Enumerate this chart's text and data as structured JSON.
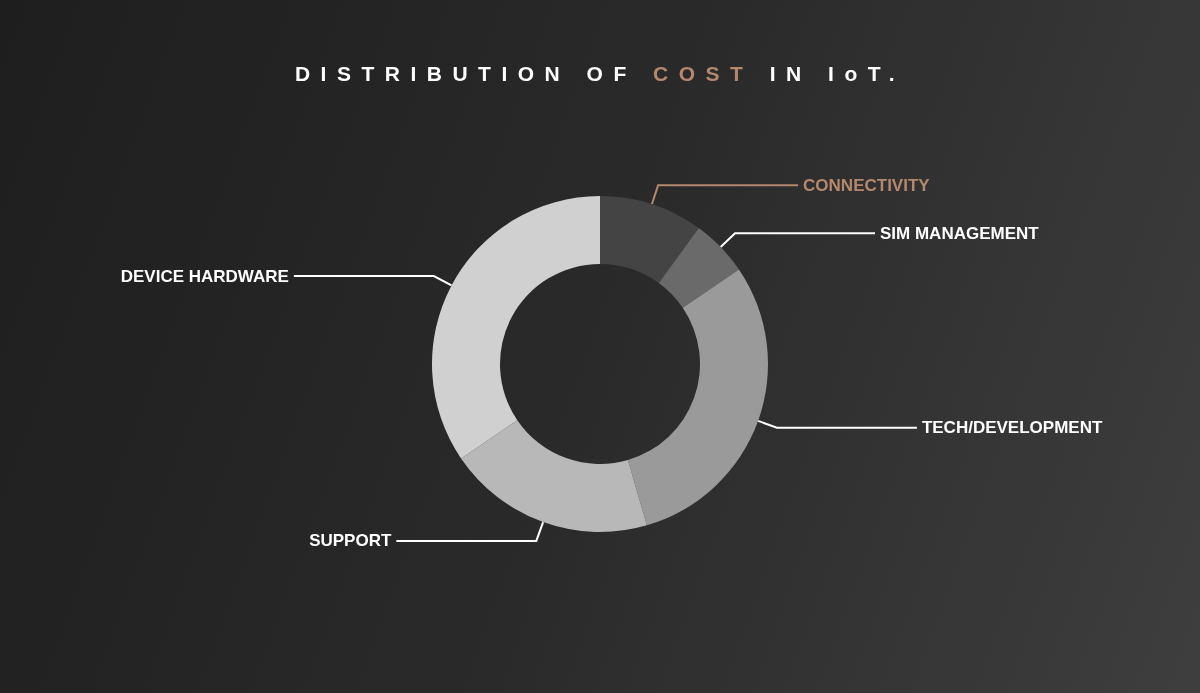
{
  "chart_data": {
    "type": "donut",
    "title": "DISTRIBUTION OF COST IN IoT.",
    "categories": [
      "CONNECTIVITY",
      "SIM MANAGEMENT",
      "TECH/DEVELOPMENT",
      "SUPPORT",
      "DEVICE HARDWARE"
    ],
    "values": [
      10,
      5.5,
      30,
      20,
      34.5
    ],
    "colors": [
      "#444444",
      "#6a6a6a",
      "#9a9a9a",
      "#b8b8b8",
      "#d0d0d0"
    ],
    "legend": false
  }
}
